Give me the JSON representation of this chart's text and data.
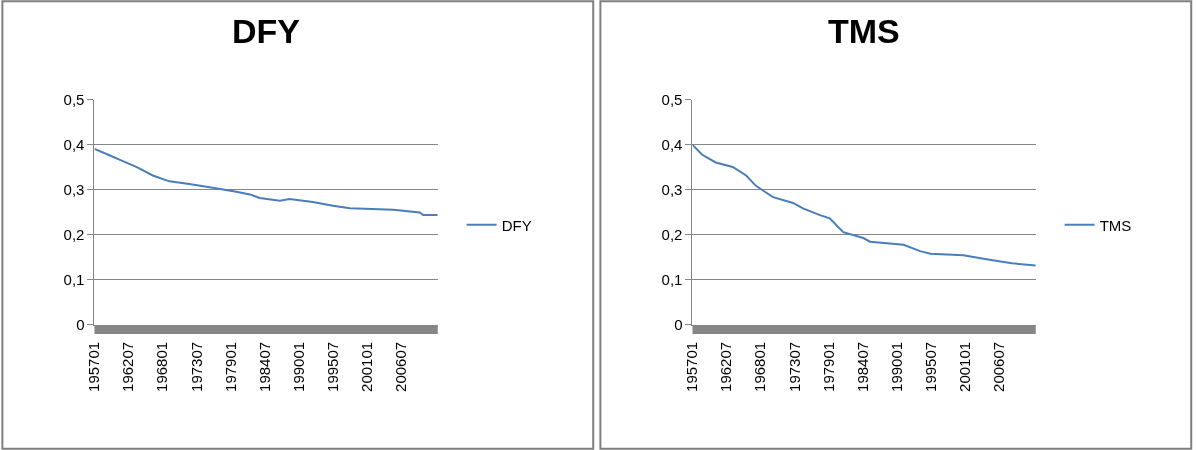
{
  "chart_data": [
    {
      "type": "line",
      "title": "DFY",
      "legend": "right",
      "grid": "y",
      "xlim": [
        "1957-01",
        "2012-06"
      ],
      "ylim": [
        0,
        0.5
      ],
      "xticks": [
        {
          "value": "1957-01",
          "label": "195701"
        },
        {
          "value": "1962-07",
          "label": "196207"
        },
        {
          "value": "1968-01",
          "label": "196801"
        },
        {
          "value": "1973-07",
          "label": "197307"
        },
        {
          "value": "1979-01",
          "label": "197901"
        },
        {
          "value": "1984-07",
          "label": "198407"
        },
        {
          "value": "1990-01",
          "label": "199001"
        },
        {
          "value": "1995-07",
          "label": "199507"
        },
        {
          "value": "2001-01",
          "label": "200101"
        },
        {
          "value": "2006-07",
          "label": "200607"
        }
      ],
      "yticks": [
        0,
        {
          "value": 0.1,
          "label": "0,1"
        },
        {
          "value": 0.2,
          "label": "0,2"
        },
        {
          "value": 0.3,
          "label": "0,3"
        },
        {
          "value": 0.4,
          "label": "0,4"
        },
        {
          "value": 0.5,
          "label": "0,5"
        }
      ],
      "x": [
        "1957-01",
        "1959-06",
        "1961-08",
        "1963-10",
        "1966-06",
        "1969-02",
        "1972-05",
        "1976-02",
        "1979-12",
        "1982-02",
        "1983-09",
        "1986-12",
        "1988-07",
        "1992-04",
        "1995-07",
        "1998-04",
        "2005-04",
        "2009-07",
        "2010-02",
        "2012-06"
      ],
      "series": [
        {
          "name": "DFY",
          "color": "#4a7ebb",
          "values": [
            0.391,
            0.377,
            0.364,
            0.351,
            0.332,
            0.319,
            0.313,
            0.305,
            0.296,
            0.29,
            0.282,
            0.276,
            0.28,
            0.273,
            0.265,
            0.259,
            0.256,
            0.25,
            0.244,
            0.244
          ]
        }
      ]
    },
    {
      "type": "line",
      "title": "TMS",
      "legend": "right",
      "grid": "y",
      "xlim": [
        "1957-01",
        "2012-06"
      ],
      "ylim": [
        0,
        0.5
      ],
      "xticks": [
        {
          "value": "1957-01",
          "label": "195701"
        },
        {
          "value": "1962-07",
          "label": "196207"
        },
        {
          "value": "1968-01",
          "label": "196801"
        },
        {
          "value": "1973-07",
          "label": "197307"
        },
        {
          "value": "1979-01",
          "label": "197901"
        },
        {
          "value": "1984-07",
          "label": "198407"
        },
        {
          "value": "1990-01",
          "label": "199001"
        },
        {
          "value": "1995-07",
          "label": "199507"
        },
        {
          "value": "2001-01",
          "label": "200101"
        },
        {
          "value": "2006-07",
          "label": "200607"
        }
      ],
      "yticks": [
        0,
        {
          "value": 0.1,
          "label": "0,1"
        },
        {
          "value": 0.2,
          "label": "0,2"
        },
        {
          "value": 0.3,
          "label": "0,3"
        },
        {
          "value": 0.4,
          "label": "0,4"
        },
        {
          "value": 0.5,
          "label": "0,5"
        }
      ],
      "x": [
        "1957-01",
        "1958-08",
        "1960-10",
        "1963-07",
        "1965-09",
        "1967-04",
        "1970-01",
        "1973-04",
        "1974-11",
        "1977-08",
        "1979-03",
        "1981-05",
        "1984-08",
        "1985-09",
        "1991-02",
        "1993-10",
        "1995-06",
        "2000-10",
        "2004-01",
        "2006-10",
        "2008-08",
        "2012-06"
      ],
      "series": [
        {
          "name": "TMS",
          "color": "#4a7ebb",
          "values": [
            0.4,
            0.378,
            0.361,
            0.351,
            0.332,
            0.309,
            0.284,
            0.271,
            0.259,
            0.244,
            0.237,
            0.206,
            0.193,
            0.185,
            0.178,
            0.164,
            0.158,
            0.155,
            0.147,
            0.141,
            0.137,
            0.132
          ]
        }
      ]
    }
  ]
}
